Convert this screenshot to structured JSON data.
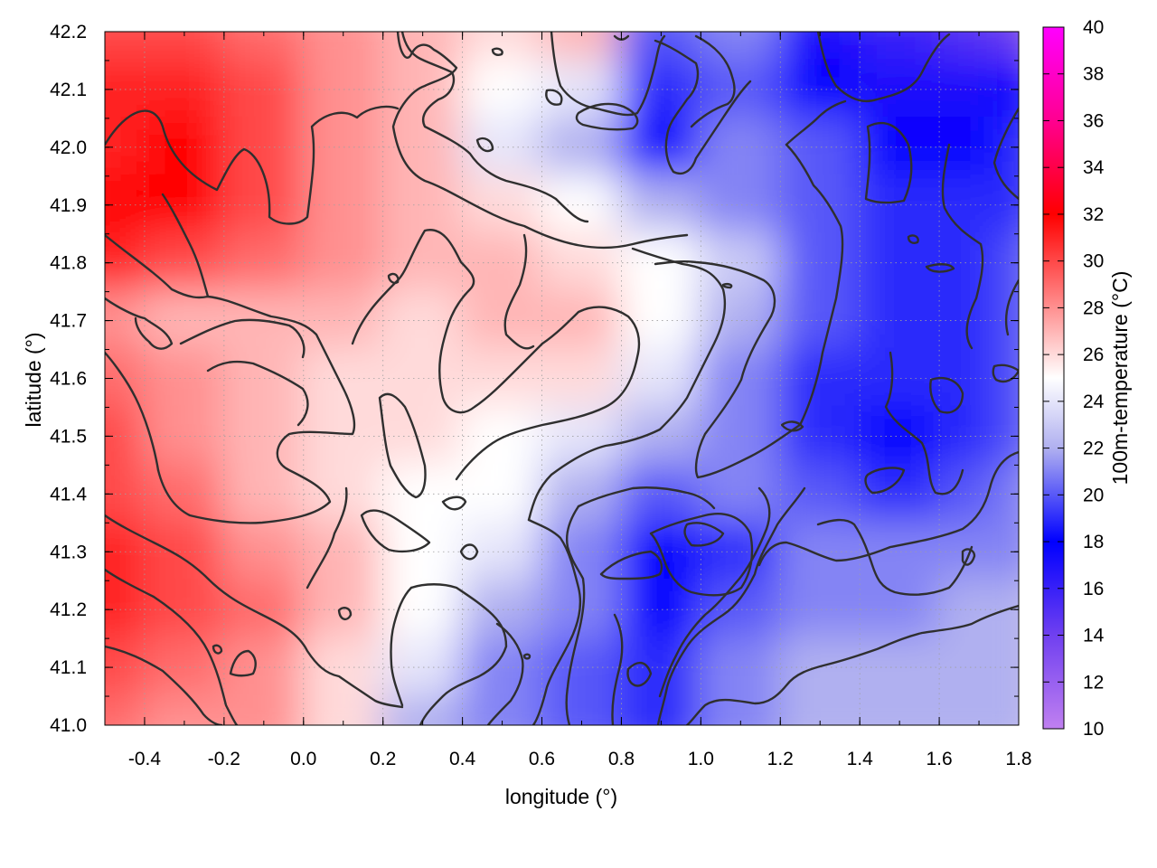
{
  "chart_data": {
    "type": "heatmap",
    "title": "",
    "xlabel": "longitude (°)",
    "ylabel": "latitude (°)",
    "colorbar_label": "100m-temperature (°C)",
    "xlim": [
      -0.5,
      1.8
    ],
    "ylim": [
      41.0,
      42.2
    ],
    "clim": [
      10,
      40
    ],
    "x_ticks": [
      -0.4,
      -0.2,
      0.0,
      0.2,
      0.4,
      0.6,
      0.8,
      1.0,
      1.2,
      1.4,
      1.6,
      1.8
    ],
    "x_tick_labels": [
      "-0.4",
      "-0.2",
      "0.0",
      "0.2",
      "0.4",
      "0.6",
      "0.8",
      "1.0",
      "1.2",
      "1.4",
      "1.6",
      "1.8"
    ],
    "y_ticks": [
      41.0,
      41.1,
      41.2,
      41.3,
      41.4,
      41.5,
      41.6,
      41.7,
      41.8,
      41.9,
      42.0,
      42.1,
      42.2
    ],
    "y_tick_labels": [
      "41.0",
      "41.1",
      "41.2",
      "41.3",
      "41.4",
      "41.5",
      "41.6",
      "41.7",
      "41.8",
      "41.9",
      "42.0",
      "42.1",
      "42.2"
    ],
    "colorbar_ticks": [
      10,
      12,
      14,
      16,
      18,
      20,
      22,
      24,
      26,
      28,
      30,
      32,
      34,
      36,
      38,
      40
    ],
    "colorbar_tick_labels": [
      "10",
      "12",
      "14",
      "16",
      "18",
      "20",
      "22",
      "24",
      "26",
      "28",
      "30",
      "32",
      "34",
      "36",
      "38",
      "40"
    ],
    "colormap_stops": [
      {
        "value": 10,
        "color": "#c080f0"
      },
      {
        "value": 14,
        "color": "#7040f0"
      },
      {
        "value": 18,
        "color": "#0000ff"
      },
      {
        "value": 22,
        "color": "#b0b0f0"
      },
      {
        "value": 25,
        "color": "#ffffff"
      },
      {
        "value": 28,
        "color": "#ff9090"
      },
      {
        "value": 32,
        "color": "#ff0000"
      },
      {
        "value": 36,
        "color": "#ff0090"
      },
      {
        "value": 40,
        "color": "#ff00ff"
      }
    ],
    "grid": true,
    "contour_color": "#2f2f2f",
    "temperature_field": {
      "longitudes": [
        -0.5,
        -0.3,
        -0.1,
        0.1,
        0.3,
        0.5,
        0.7,
        0.9,
        1.1,
        1.3,
        1.5,
        1.7,
        1.8
      ],
      "latitudes": [
        42.2,
        42.1,
        42.0,
        41.9,
        41.8,
        41.7,
        41.6,
        41.5,
        41.4,
        41.3,
        41.2,
        41.1,
        41.0
      ],
      "values": [
        [
          30,
          30,
          29,
          28,
          27,
          26,
          27,
          20,
          21,
          17,
          16,
          15,
          14
        ],
        [
          31,
          31,
          30,
          28,
          27,
          25,
          24,
          19,
          20,
          18,
          17,
          17,
          18
        ],
        [
          31,
          32,
          30,
          28,
          27,
          24,
          22,
          18,
          21,
          20,
          18,
          18,
          19
        ],
        [
          32,
          32,
          30,
          28,
          27,
          26,
          25,
          22,
          21,
          20,
          19,
          19,
          19
        ],
        [
          31,
          30,
          29,
          28,
          27,
          27,
          26,
          25,
          23,
          20,
          19,
          19,
          20
        ],
        [
          28,
          27,
          27,
          27,
          26,
          27,
          27,
          25,
          22,
          20,
          19,
          19,
          20
        ],
        [
          29,
          28,
          27,
          26,
          26,
          26,
          26,
          24,
          21,
          19,
          19,
          19,
          20
        ],
        [
          30,
          28,
          27,
          26,
          26,
          25,
          24,
          22,
          21,
          19,
          18,
          19,
          20
        ],
        [
          30,
          29,
          27,
          26,
          25,
          25,
          22,
          20,
          21,
          20,
          19,
          20,
          21
        ],
        [
          31,
          30,
          28,
          27,
          25,
          24,
          21,
          18,
          19,
          21,
          21,
          21,
          21
        ],
        [
          31,
          30,
          29,
          27,
          25,
          22,
          21,
          18,
          20,
          21,
          21,
          22,
          22
        ],
        [
          30,
          29,
          28,
          26,
          24,
          21,
          20,
          19,
          21,
          22,
          22,
          22,
          22
        ],
        [
          29,
          28,
          28,
          26,
          22,
          21,
          20,
          19,
          21,
          22,
          22,
          22,
          22
        ]
      ]
    }
  }
}
